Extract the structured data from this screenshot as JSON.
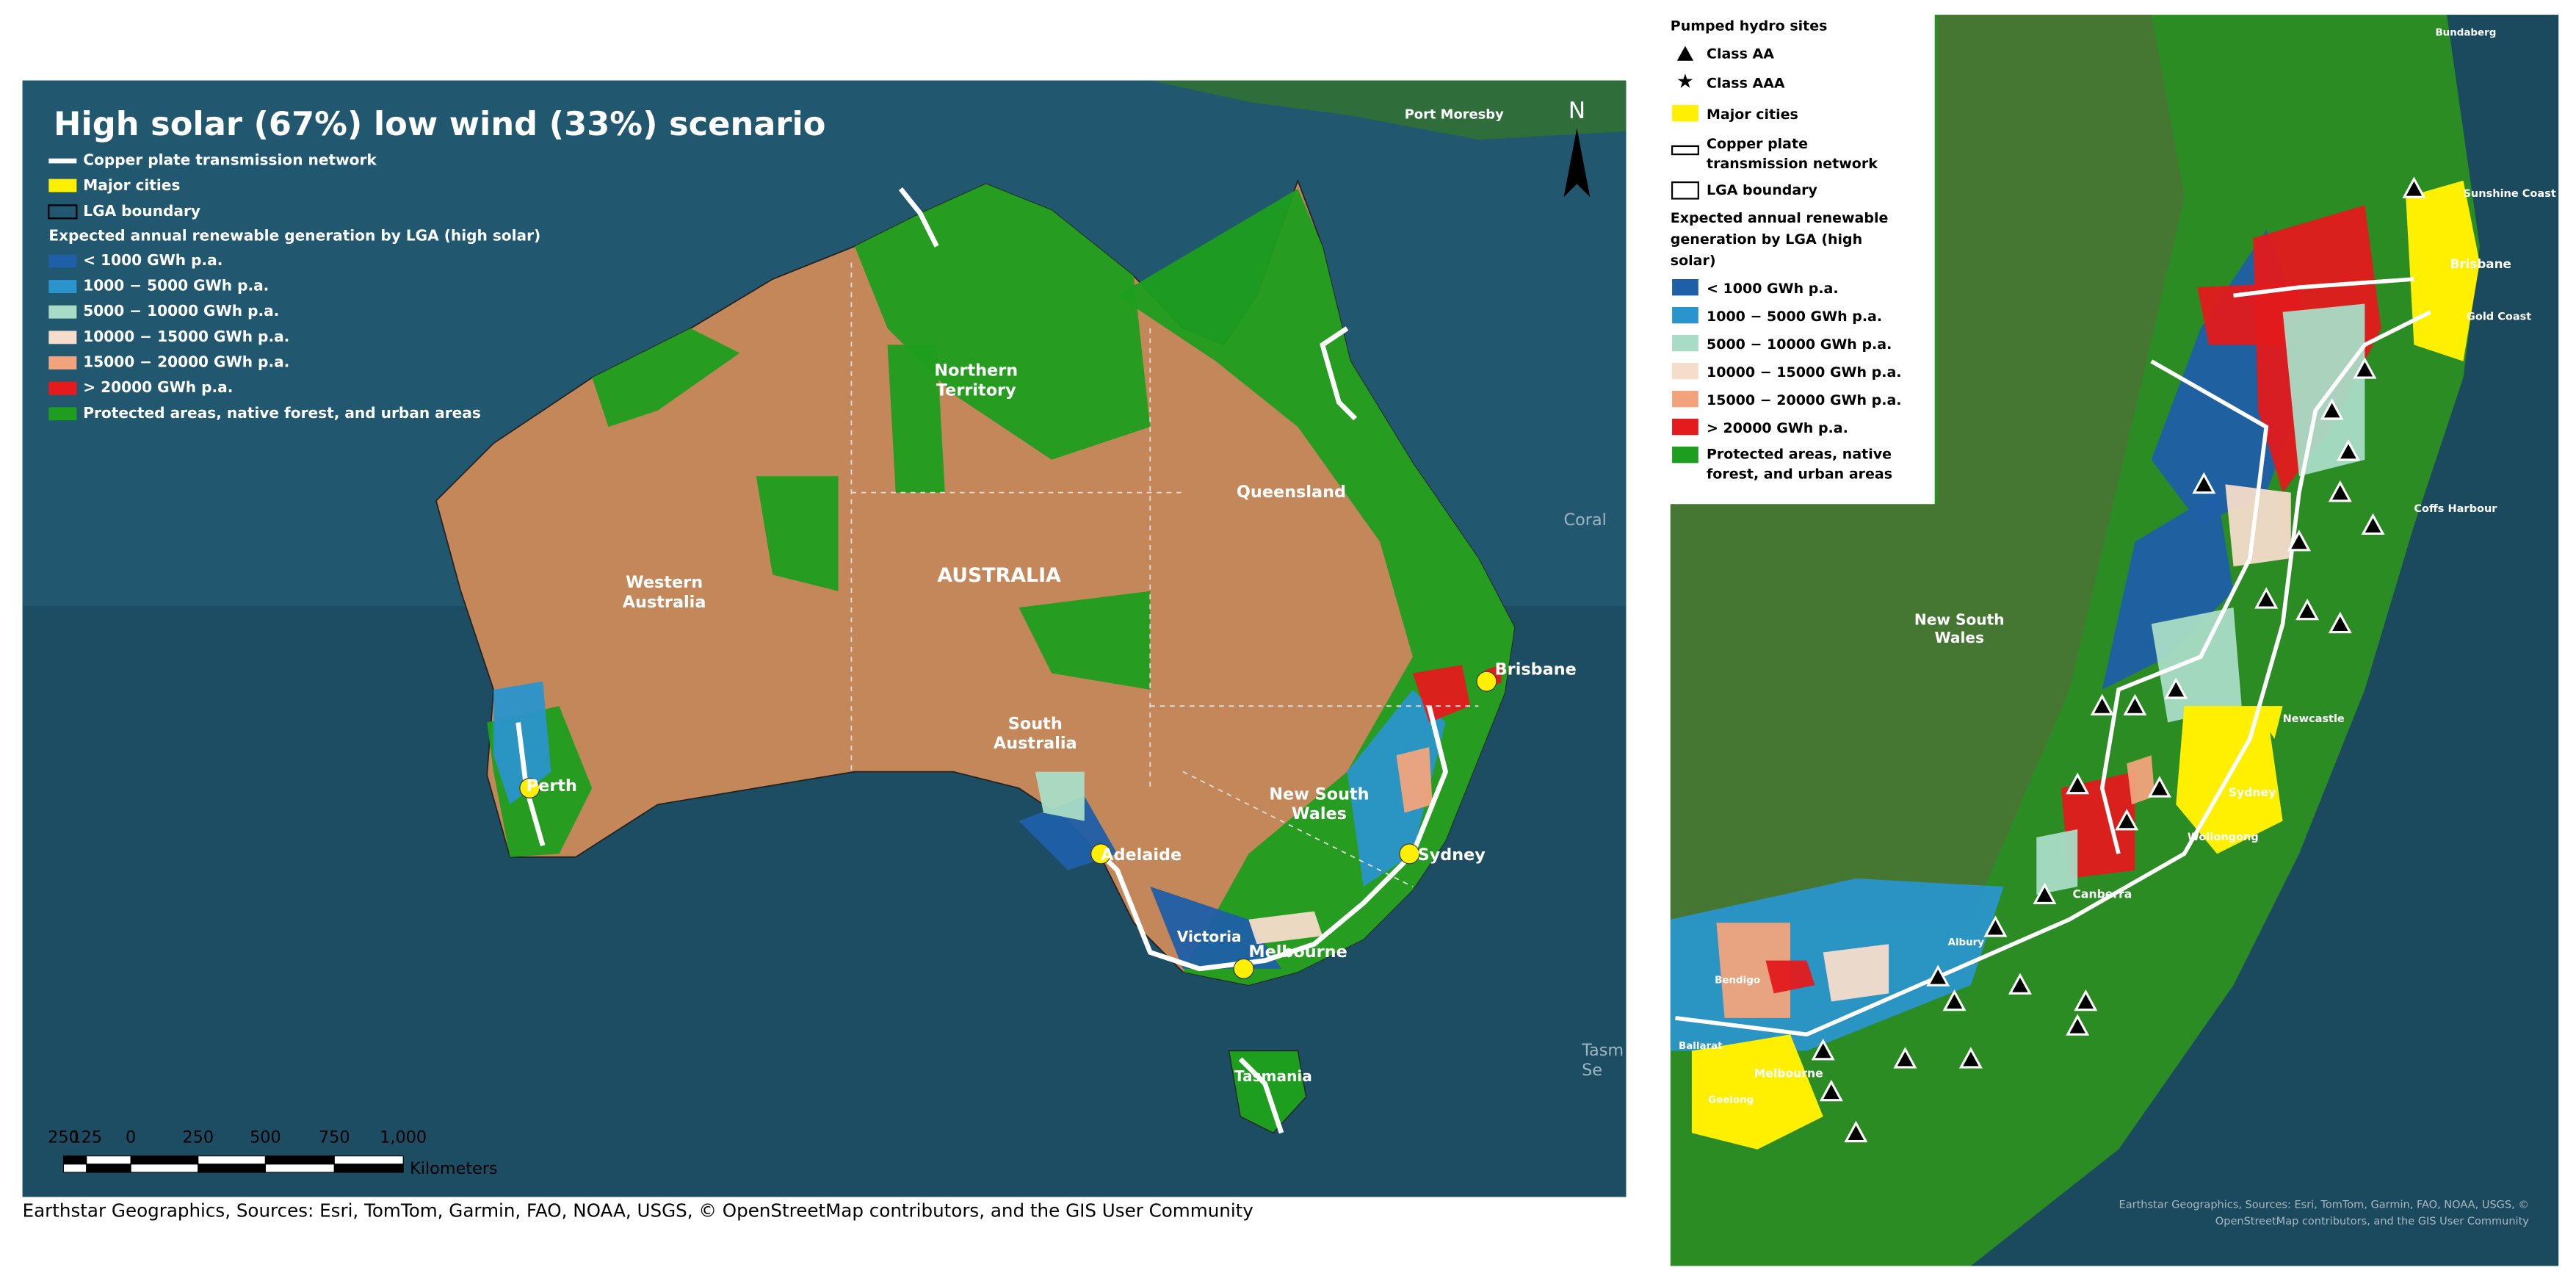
{
  "left_map": {
    "title": "High solar (67%) low wind (33%) scenario",
    "legend": {
      "items": [
        "Copper plate transmission network",
        "Major cities",
        "LGA boundary"
      ],
      "generation_title": "Expected annual renewable generation by LGA (high solar)",
      "generation_classes": [
        "< 1000 GWh p.a.",
        "1000 − 5000 GWh p.a.",
        "5000 − 10000 GWh p.a.",
        "10000 − 15000 GWh p.a.",
        "15000 − 20000 GWh p.a.",
        "> 20000 GWh p.a."
      ],
      "protected": "Protected areas, native forest, and urban areas"
    },
    "places": [
      [
        "Port Moresby"
      ],
      [
        "Northern",
        "Territory"
      ],
      [
        "Queensland"
      ],
      [
        "Western",
        "Australia"
      ],
      [
        "AUSTRALIA"
      ],
      [
        "South",
        "Australia"
      ],
      [
        "New South",
        "Wales"
      ],
      [
        "Victoria"
      ],
      [
        "Tasmania"
      ],
      [
        "Brisbane"
      ],
      [
        "Sydney"
      ],
      [
        "Melbourne"
      ],
      [
        "Adelaide"
      ],
      [
        "Perth"
      ],
      [
        "Coral"
      ],
      [
        "Tasm",
        "Se"
      ]
    ],
    "north": "N",
    "scale_ticks": [
      "250",
      "125",
      "0",
      "250",
      "500",
      "750",
      "1,000"
    ],
    "scale_unit": "Kilometers",
    "attribution": "Earthstar Geographics, Sources: Esri, TomTom, Garmin, FAO, NOAA, USGS, © OpenStreetMap contributors, and the GIS User Community"
  },
  "right_map": {
    "legend": {
      "hydro_title": "Pumped hydro sites",
      "hydro_classes": [
        "Class AA",
        "Class AAA"
      ],
      "items": [
        [
          "Major cities"
        ],
        [
          "Copper plate",
          "transmission network"
        ],
        [
          "LGA boundary"
        ]
      ],
      "generation_title": [
        "Expected annual renewable",
        "generation by LGA (high",
        "solar)"
      ],
      "generation_classes": [
        "< 1000 GWh p.a.",
        "1000 − 5000 GWh p.a.",
        "5000 − 10000 GWh p.a.",
        "10000 − 15000 GWh p.a.",
        "15000 − 20000 GWh p.a.",
        "> 20000 GWh p.a."
      ],
      "protected": [
        "Protected areas, native",
        "forest, and urban areas"
      ]
    },
    "places": [
      [
        "Bundaberg"
      ],
      [
        "Sunshine Coast"
      ],
      [
        "Brisbane"
      ],
      [
        "Gold Coast"
      ],
      [
        "Coffs Harbour"
      ],
      [
        "New South",
        "Wales"
      ],
      [
        "Newcastle"
      ],
      [
        "Sydney"
      ],
      [
        "Wollongong"
      ],
      [
        "Canberra"
      ],
      [
        "Albury"
      ],
      [
        "Bendigo"
      ],
      [
        "Ballarat"
      ],
      [
        "Melbourne"
      ],
      [
        "Geelong"
      ]
    ],
    "attribution": [
      "Earthstar Geographics, Sources: Esri, TomTom, Garmin, FAO, NOAA, USGS, ©",
      "OpenStreetMap contributors, and the GIS User Community"
    ]
  }
}
